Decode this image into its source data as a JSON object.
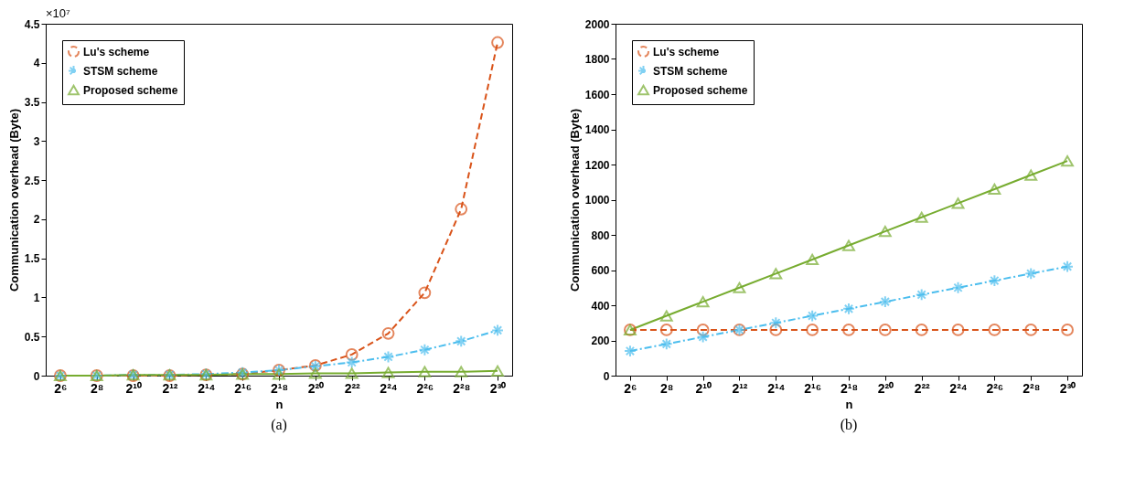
{
  "chart_data": [
    {
      "type": "line",
      "title": "(a)",
      "xlabel": "n",
      "ylabel": "Communication overhead (Byte)",
      "annotations": [
        "×10⁷"
      ],
      "categories": [
        "2⁶",
        "2⁸",
        "2¹⁰",
        "2¹²",
        "2¹⁴",
        "2¹⁶",
        "2¹⁸",
        "2²⁰",
        "2²²",
        "2²⁴",
        "2²⁶",
        "2²⁸",
        "2³⁰"
      ],
      "ylim": [
        0,
        4.5
      ],
      "yticks": [
        0,
        0.5,
        1,
        1.5,
        2,
        2.5,
        3,
        3.5,
        4,
        4.5
      ],
      "grid": false,
      "legend": "top left",
      "series": [
        {
          "name": "Lu's scheme",
          "color": "#d95319",
          "marker": "circle",
          "line_style": "dashed",
          "values": [
            0,
            0,
            0,
            0,
            0.01,
            0.02,
            0.07,
            0.13,
            0.27,
            0.54,
            1.06,
            2.13,
            4.26
          ]
        },
        {
          "name": "STSM scheme",
          "color": "#4dbeee",
          "marker": "cross",
          "line_style": "dashdot",
          "values": [
            0,
            0,
            0.01,
            0.01,
            0.02,
            0.04,
            0.07,
            0.12,
            0.17,
            0.24,
            0.33,
            0.44,
            0.58
          ]
        },
        {
          "name": "Proposed scheme",
          "color": "#77ac30",
          "marker": "triangle",
          "line_style": "solid",
          "values": [
            0,
            0,
            0.01,
            0.01,
            0.01,
            0.02,
            0.02,
            0.03,
            0.03,
            0.04,
            0.05,
            0.05,
            0.06
          ]
        }
      ]
    },
    {
      "type": "line",
      "title": "(b)",
      "xlabel": "n",
      "ylabel": "Communication overhead (Byte)",
      "categories": [
        "2⁶",
        "2⁸",
        "2¹⁰",
        "2¹²",
        "2¹⁴",
        "2¹⁶",
        "2¹⁸",
        "2²⁰",
        "2²²",
        "2²⁴",
        "2²⁶",
        "2²⁸",
        "2³⁰"
      ],
      "ylim": [
        0,
        2000
      ],
      "yticks": [
        0,
        200,
        400,
        600,
        800,
        1000,
        1200,
        1400,
        1600,
        1800,
        2000
      ],
      "grid": false,
      "legend": "top left",
      "series": [
        {
          "name": "Lu's scheme",
          "color": "#d95319",
          "marker": "circle",
          "line_style": "dashed",
          "values": [
            260,
            260,
            260,
            260,
            260,
            260,
            260,
            260,
            260,
            260,
            260,
            260,
            260
          ]
        },
        {
          "name": "STSM scheme",
          "color": "#4dbeee",
          "marker": "cross",
          "line_style": "dashdot",
          "values": [
            140,
            180,
            220,
            260,
            300,
            340,
            380,
            420,
            460,
            500,
            540,
            580,
            620
          ]
        },
        {
          "name": "Proposed scheme",
          "color": "#77ac30",
          "marker": "triangle",
          "line_style": "solid",
          "values": [
            260,
            340,
            420,
            500,
            580,
            660,
            740,
            820,
            900,
            980,
            1060,
            1140,
            1220
          ]
        }
      ]
    }
  ]
}
